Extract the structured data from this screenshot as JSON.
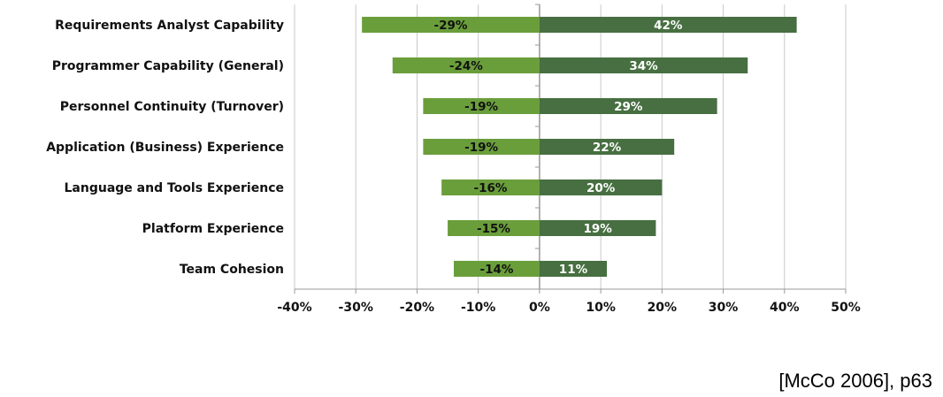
{
  "chart_data": {
    "type": "bar",
    "orientation": "horizontal",
    "categories": [
      "Requirements Analyst Capability",
      "Programmer Capability (General)",
      "Personnel Continuity (Turnover)",
      "Application (Business) Experience",
      "Language and Tools Experience",
      "Platform Experience",
      "Team Cohesion"
    ],
    "series": [
      {
        "values": [
          -29,
          -24,
          -19,
          -19,
          -16,
          -15,
          -14
        ],
        "color": "#6a9e3b",
        "label_color": "#111111"
      },
      {
        "values": [
          42,
          34,
          29,
          22,
          20,
          19,
          11
        ],
        "color": "#476f41",
        "label_color": "#ffffff"
      }
    ],
    "data_labels": [
      [
        "-29%",
        "-24%",
        "-19%",
        "-19%",
        "-16%",
        "-15%",
        "-14%"
      ],
      [
        "42%",
        "34%",
        "29%",
        "22%",
        "20%",
        "19%",
        "11%"
      ]
    ],
    "xlim": [
      -40,
      50
    ],
    "x_ticks": [
      -40,
      -30,
      -20,
      -10,
      0,
      10,
      20,
      30,
      40,
      50
    ],
    "x_tick_labels": [
      "-40%",
      "-30%",
      "-20%",
      "-10%",
      "0%",
      "10%",
      "20%",
      "30%",
      "40%",
      "50%"
    ],
    "grid": true,
    "title": "",
    "xlabel": "",
    "ylabel": ""
  },
  "citation": "[McCo 2006], p63"
}
